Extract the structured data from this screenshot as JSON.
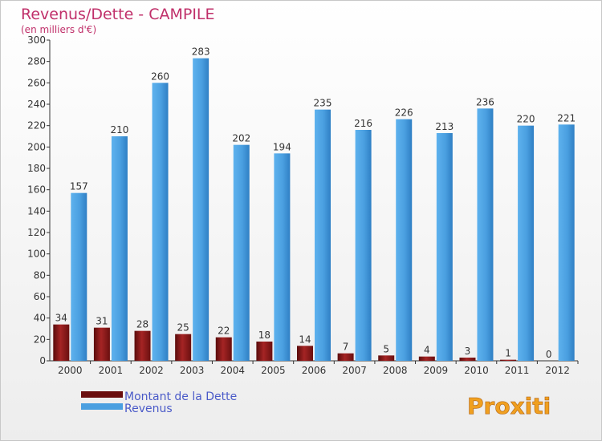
{
  "chart_data": {
    "type": "bar",
    "title": "Revenus/Dette - CAMPILE",
    "subtitle": "(en milliers d'€)",
    "xlabel": "",
    "ylabel": "",
    "ylim": [
      0,
      300
    ],
    "yticks": [
      0,
      20,
      40,
      60,
      80,
      100,
      120,
      140,
      160,
      180,
      200,
      220,
      240,
      260,
      280,
      300
    ],
    "grid": false,
    "legend_position": "bottom-left",
    "categories": [
      "2000",
      "2001",
      "2002",
      "2003",
      "2004",
      "2005",
      "2006",
      "2007",
      "2008",
      "2009",
      "2010",
      "2011",
      "2012"
    ],
    "series": [
      {
        "name": "Montant de la Dette",
        "color": "#8b1a1a",
        "values": [
          34,
          31,
          28,
          25,
          22,
          18,
          14,
          7,
          5,
          4,
          3,
          1,
          0
        ]
      },
      {
        "name": "Revenus",
        "color": "#4a9fe0",
        "values": [
          157,
          210,
          260,
          283,
          202,
          194,
          235,
          216,
          226,
          213,
          236,
          220,
          221
        ]
      }
    ]
  },
  "brand": {
    "logo_text": "Proxiti",
    "title_color": "#c0306a",
    "legend_text_color": "#4a5ac8"
  }
}
